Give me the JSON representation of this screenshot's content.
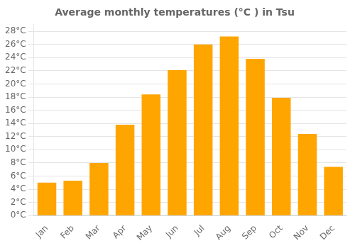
{
  "chart_data": {
    "type": "bar",
    "title": "Average monthly temperatures (°C ) in Tsu",
    "categories": [
      "Jan",
      "Feb",
      "Mar",
      "Apr",
      "May",
      "Jun",
      "Jul",
      "Aug",
      "Sep",
      "Oct",
      "Nov",
      "Dec"
    ],
    "values": [
      5.0,
      5.3,
      8.0,
      13.8,
      18.4,
      22.1,
      26.0,
      27.2,
      23.8,
      17.9,
      12.4,
      7.4
    ],
    "color": "#FFA500",
    "ylim": [
      0,
      29
    ],
    "yticks": [
      {
        "value": 0,
        "label": "0°C"
      },
      {
        "value": 2,
        "label": "2°C"
      },
      {
        "value": 4,
        "label": "4°C"
      },
      {
        "value": 6,
        "label": "6°C"
      },
      {
        "value": 8,
        "label": "8°C"
      },
      {
        "value": 10,
        "label": "10°C"
      },
      {
        "value": 12,
        "label": "12°C"
      },
      {
        "value": 14,
        "label": "14°C"
      },
      {
        "value": 16,
        "label": "16°C"
      },
      {
        "value": 18,
        "label": "18°C"
      },
      {
        "value": 20,
        "label": "20°C"
      },
      {
        "value": 22,
        "label": "22°C"
      },
      {
        "value": 24,
        "label": "24°C"
      },
      {
        "value": 26,
        "label": "26°C"
      },
      {
        "value": 28,
        "label": "28°C"
      }
    ],
    "grid": true
  }
}
